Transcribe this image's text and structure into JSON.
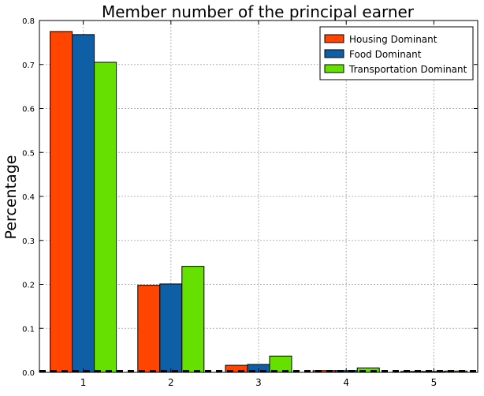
{
  "chart_data": {
    "type": "bar",
    "title": "Member number of the principal earner",
    "xlabel": "",
    "ylabel": "Percentage",
    "categories": [
      "1",
      "2",
      "3",
      "4",
      "5"
    ],
    "ylim": [
      0,
      0.8
    ],
    "yticks": [
      "0.0",
      "0.1",
      "0.2",
      "0.3",
      "0.4",
      "0.5",
      "0.6",
      "0.7",
      "0.8"
    ],
    "grid": true,
    "legend_position": "top-right",
    "series": [
      {
        "name": "Housing Dominant",
        "color": "#ff4500",
        "values": [
          0.775,
          0.198,
          0.016,
          0.004,
          0.002
        ]
      },
      {
        "name": "Food Dominant",
        "color": "#0f5fa6",
        "values": [
          0.768,
          0.201,
          0.018,
          0.004,
          0.002
        ]
      },
      {
        "name": "Transportation Dominant",
        "color": "#66e000",
        "values": [
          0.705,
          0.241,
          0.037,
          0.01,
          0.003
        ]
      }
    ]
  }
}
